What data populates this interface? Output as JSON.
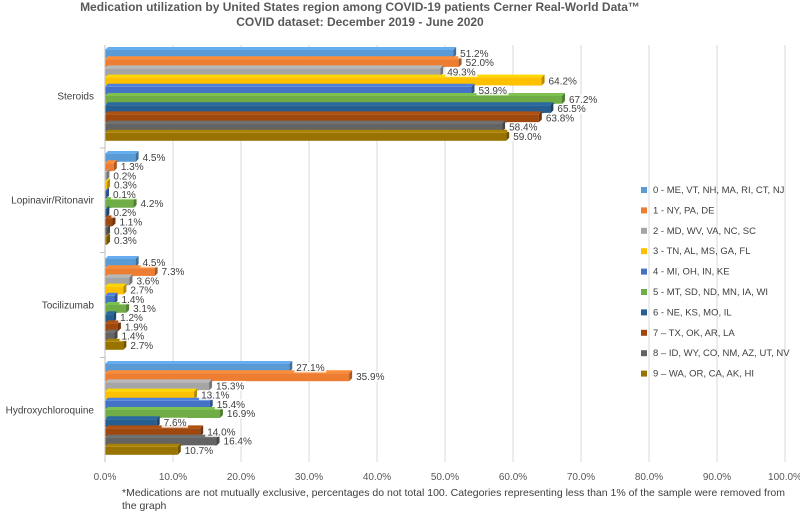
{
  "chart_data": {
    "type": "bar",
    "orientation": "horizontal",
    "title": "Medication utilization by United States region among COVID-19 patients Cerner Real-World Data™ COVID dataset: December 2019 - June 2020",
    "footnote": "*Medications are not mutually exclusive, percentages do not total 100. Categories representing less than 1% of the sample were removed from the graph",
    "categories": [
      "Steroids",
      "Lopinavir/Ritonavir",
      "Tocilizumab",
      "Hydroxychloroquine"
    ],
    "xlim": [
      0,
      100
    ],
    "xticks": [
      "0.0%",
      "10.0%",
      "20.0%",
      "30.0%",
      "40.0%",
      "50.0%",
      "60.0%",
      "70.0%",
      "80.0%",
      "90.0%",
      "100.0%"
    ],
    "grid": true,
    "legend_position": "right",
    "series": [
      {
        "name": "0 - ME, VT, NH, MA, RI, CT, NJ",
        "color": "#5B9BD5",
        "values": [
          51.2,
          4.5,
          4.5,
          27.1
        ],
        "labels": [
          "51.2%",
          "4.5%",
          "4.5%",
          "27.1%"
        ]
      },
      {
        "name": "1 - NY, PA, DE",
        "color": "#ED7D31",
        "values": [
          52.0,
          1.3,
          7.3,
          35.9
        ],
        "labels": [
          "52.0%",
          "1.3%",
          "7.3%",
          "35.9%"
        ]
      },
      {
        "name": "2 - MD, WV, VA, NC, SC",
        "color": "#A5A5A5",
        "values": [
          49.3,
          0.2,
          3.6,
          15.3
        ],
        "labels": [
          "49.3%",
          "0.2%",
          "3.6%",
          "15.3%"
        ]
      },
      {
        "name": "3 - TN, AL, MS, GA, FL",
        "color": "#FFC000",
        "values": [
          64.2,
          0.3,
          2.7,
          13.1
        ],
        "labels": [
          "64.2%",
          "0.3%",
          "2.7%",
          "13.1%"
        ]
      },
      {
        "name": "4 - MI, OH, IN, KE",
        "color": "#4472C4",
        "values": [
          53.9,
          0.1,
          1.4,
          15.4
        ],
        "labels": [
          "53.9%",
          "0.1%",
          "1.4%",
          "15.4%"
        ]
      },
      {
        "name": "5 - MT, SD, ND, MN, IA, WI",
        "color": "#70AD47",
        "values": [
          67.2,
          4.2,
          3.1,
          16.9
        ],
        "labels": [
          "67.2%",
          "4.2%",
          "3.1%",
          "16.9%"
        ]
      },
      {
        "name": "6 - NE, KS, MO, IL",
        "color": "#255E91",
        "values": [
          65.5,
          0.2,
          1.2,
          7.6
        ],
        "labels": [
          "65.5%",
          "0.2%",
          "1.2%",
          "7.6%"
        ]
      },
      {
        "name": "7 – TX, OK, AR, LA",
        "color": "#9E480E",
        "values": [
          63.8,
          1.1,
          1.9,
          14.0
        ],
        "labels": [
          "63.8%",
          "1.1%",
          "1.9%",
          "14.0%"
        ]
      },
      {
        "name": "8 – ID, WY, CO, NM, AZ, UT, NV",
        "color": "#636363",
        "values": [
          58.4,
          0.3,
          1.4,
          16.4
        ],
        "labels": [
          "58.4%",
          "0.3%",
          "1.4%",
          "16.4%"
        ]
      },
      {
        "name": "9 – WA, OR, CA, AK, HI",
        "color": "#997300",
        "values": [
          59.0,
          0.3,
          2.7,
          10.7
        ],
        "labels": [
          "59.0%",
          "0.3%",
          "2.7%",
          "10.7%"
        ]
      }
    ]
  }
}
